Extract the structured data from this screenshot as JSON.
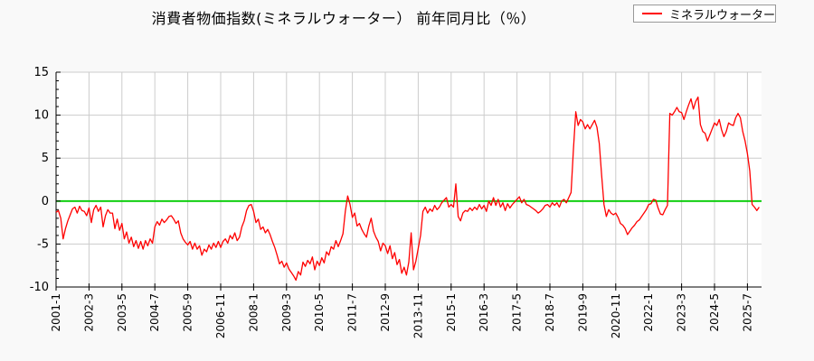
{
  "title": "消費者物価指数(ミネラルウォーター） 前年同月比（％）",
  "legend": {
    "label": "ミネラルウォーター",
    "color": "#ff0000"
  },
  "colors": {
    "series": "#ff0000",
    "zero_line": "#00cc00",
    "grid": "#cccccc",
    "axis": "#000000",
    "plot_background": "#ffffff",
    "page_background": "#f9f9f9"
  },
  "chart_data": {
    "type": "line",
    "title": "消費者物価指数(ミネラルウォーター） 前年同月比（％）",
    "xlabel": "",
    "ylabel": "",
    "ylim": [
      -10,
      15
    ],
    "y_ticks": [
      -10,
      -5,
      0,
      5,
      10,
      15
    ],
    "y_minor_tick_step": 1,
    "grid": true,
    "legend_position": "top-right",
    "zero_line": true,
    "x_start_month": "2001-1",
    "x_end_month": "2025-12",
    "x_tick_interval_months": 14,
    "x_tick_labels": [
      "2001-1",
      "2002-3",
      "2003-5",
      "2004-7",
      "2005-9",
      "2006-11",
      "2008-1",
      "2009-3",
      "2010-5",
      "2011-7",
      "2012-9",
      "2013-11",
      "2015-1",
      "2016-3",
      "2017-5",
      "2018-7",
      "2019-9",
      "2020-11",
      "2022-1",
      "2023-3",
      "2024-5",
      "2025-7"
    ],
    "series": [
      {
        "name": "ミネラルウォーター",
        "color": "#ff0000",
        "frequency": "monthly",
        "values": [
          -1.3,
          -1.1,
          -2.0,
          -4.4,
          -3.2,
          -2.3,
          -1.6,
          -0.9,
          -0.7,
          -1.4,
          -0.6,
          -1.1,
          -1.2,
          -1.7,
          -0.8,
          -2.5,
          -1.0,
          -0.5,
          -1.2,
          -0.7,
          -3.0,
          -1.7,
          -1.0,
          -1.4,
          -1.4,
          -3.2,
          -2.1,
          -3.4,
          -2.6,
          -4.4,
          -3.6,
          -4.9,
          -4.2,
          -5.3,
          -4.6,
          -5.5,
          -4.7,
          -5.6,
          -4.6,
          -5.2,
          -4.4,
          -4.9,
          -3.0,
          -2.4,
          -2.8,
          -2.1,
          -2.5,
          -2.2,
          -1.8,
          -1.7,
          -2.1,
          -2.6,
          -2.3,
          -3.7,
          -4.4,
          -4.8,
          -5.1,
          -4.7,
          -5.6,
          -4.9,
          -5.6,
          -5.2,
          -6.3,
          -5.6,
          -5.9,
          -5.1,
          -5.6,
          -4.9,
          -5.4,
          -4.7,
          -5.4,
          -4.7,
          -4.4,
          -4.9,
          -4.0,
          -4.4,
          -3.7,
          -4.6,
          -4.2,
          -3.0,
          -2.3,
          -1.1,
          -0.5,
          -0.4,
          -1.2,
          -2.5,
          -2.1,
          -3.3,
          -3.0,
          -3.7,
          -3.3,
          -3.9,
          -4.7,
          -5.4,
          -6.3,
          -7.3,
          -7.0,
          -7.7,
          -7.2,
          -7.9,
          -8.3,
          -8.7,
          -9.2,
          -8.2,
          -8.6,
          -7.1,
          -7.6,
          -6.9,
          -7.3,
          -6.5,
          -8.0,
          -7.0,
          -7.5,
          -6.6,
          -7.2,
          -5.9,
          -6.3,
          -5.3,
          -5.6,
          -4.6,
          -5.3,
          -4.6,
          -3.8,
          -1.2,
          0.6,
          -0.4,
          -1.9,
          -1.4,
          -2.9,
          -2.6,
          -3.3,
          -3.8,
          -4.2,
          -2.9,
          -2.0,
          -3.5,
          -4.2,
          -4.7,
          -5.8,
          -4.9,
          -5.2,
          -6.1,
          -5.2,
          -6.7,
          -6.0,
          -7.4,
          -6.8,
          -8.4,
          -7.7,
          -8.6,
          -7.1,
          -3.7,
          -8.0,
          -7.0,
          -5.5,
          -4.0,
          -1.2,
          -0.7,
          -1.4,
          -0.9,
          -1.2,
          -0.5,
          -1.0,
          -0.7,
          -0.2,
          0.1,
          0.4,
          -0.7,
          -0.4,
          -0.7,
          2.0,
          -1.8,
          -2.3,
          -1.4,
          -1.1,
          -1.2,
          -0.8,
          -1.1,
          -0.7,
          -1.0,
          -0.4,
          -0.9,
          -0.5,
          -1.2,
          0.0,
          -0.5,
          0.4,
          -0.5,
          0.2,
          -0.7,
          -0.2,
          -1.1,
          -0.3,
          -0.8,
          -0.4,
          -0.1,
          0.2,
          0.5,
          -0.2,
          0.2,
          -0.4,
          -0.5,
          -0.7,
          -0.9,
          -1.1,
          -1.4,
          -1.2,
          -0.9,
          -0.5,
          -0.4,
          -0.7,
          -0.2,
          -0.5,
          -0.2,
          -0.7,
          0.0,
          0.2,
          -0.2,
          0.4,
          1.0,
          6.0,
          10.4,
          8.8,
          9.5,
          9.2,
          8.4,
          8.9,
          8.4,
          8.9,
          9.4,
          8.6,
          6.7,
          3.0,
          -0.4,
          -1.8,
          -1.0,
          -1.4,
          -1.6,
          -1.4,
          -1.9,
          -2.6,
          -2.8,
          -3.2,
          -3.9,
          -3.5,
          -3.1,
          -2.8,
          -2.4,
          -2.2,
          -1.8,
          -1.4,
          -1.0,
          -0.4,
          -0.3,
          0.2,
          0.1,
          -0.8,
          -1.5,
          -1.6,
          -1.0,
          -0.5,
          10.2,
          10.0,
          10.4,
          10.9,
          10.4,
          10.3,
          9.5,
          10.4,
          11.2,
          11.9,
          10.7,
          11.6,
          12.1,
          8.9,
          8.1,
          7.9,
          7.0,
          7.7,
          8.4,
          9.1,
          8.8,
          9.5,
          8.3,
          7.5,
          8.1,
          9.1,
          8.9,
          8.8,
          9.7,
          10.2,
          9.7,
          8.1,
          7.0,
          5.5,
          3.5,
          -0.4,
          -0.7,
          -1.1,
          -0.7
        ]
      }
    ]
  }
}
